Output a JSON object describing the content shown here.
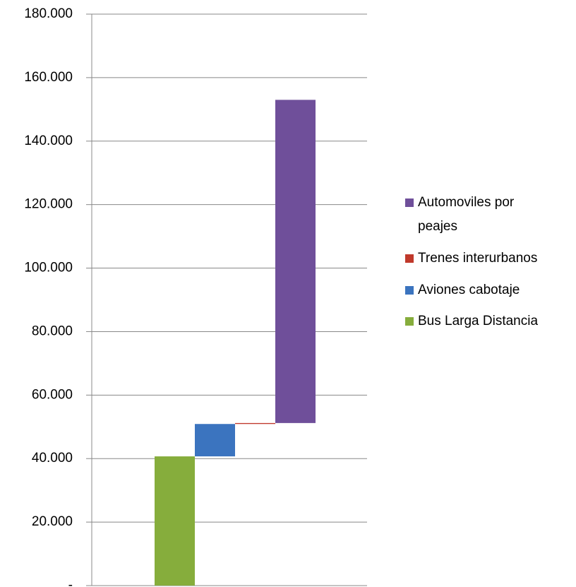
{
  "chart_data": {
    "type": "waterfall",
    "series": [
      {
        "name": "Bus Larga Distancia",
        "color": "#86ad3c",
        "values": [
          40700
        ]
      },
      {
        "name": "Aviones cabotaje",
        "color": "#3b74bf",
        "values": [
          10200
        ]
      },
      {
        "name": "Trenes interurbanos",
        "color": "#c0392b",
        "values": [
          300
        ]
      },
      {
        "name": "Automoviles por peajes",
        "color": "#6f4f9a",
        "values": [
          101800
        ]
      }
    ],
    "ylim": [
      0,
      180000
    ],
    "yticks": [
      {
        "value": 0,
        "label": "-"
      },
      {
        "value": 20000,
        "label": "20.000"
      },
      {
        "value": 40000,
        "label": "40.000"
      },
      {
        "value": 60000,
        "label": "60.000"
      },
      {
        "value": 80000,
        "label": "80.000"
      },
      {
        "value": 100000,
        "label": "100.000"
      },
      {
        "value": 120000,
        "label": "120.000"
      },
      {
        "value": 140000,
        "label": "140.000"
      },
      {
        "value": 160000,
        "label": "160.000"
      },
      {
        "value": 180000,
        "label": "180.000"
      }
    ],
    "grid": true
  }
}
